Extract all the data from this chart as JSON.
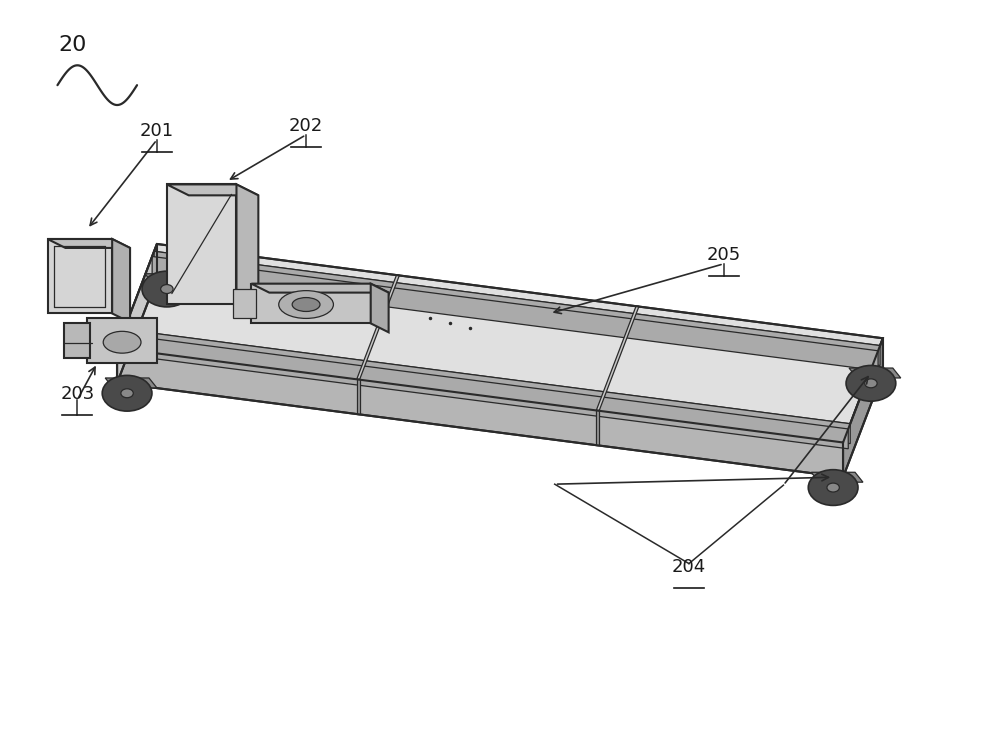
{
  "bg_color": "#ffffff",
  "line_color": "#2a2a2a",
  "label_color": "#1a1a1a",
  "fig_width": 10.0,
  "fig_height": 7.48,
  "dpi": 100,
  "lw_main": 1.5,
  "lw_thin": 0.9,
  "lw_label": 1.1,
  "face_top": "#e0e0e0",
  "face_side": "#b5b5b5",
  "face_front": "#cacaca",
  "face_dark": "#999999",
  "face_box": "#d5d5d5",
  "face_box_top": "#c0c0c0",
  "face_box_side": "#b0b0b0",
  "face_motor": "#c5c5c5",
  "face_wheel": "#4a4a4a",
  "face_bracket": "#888888"
}
